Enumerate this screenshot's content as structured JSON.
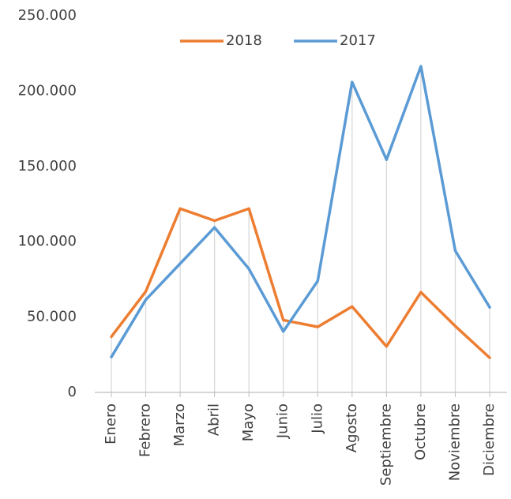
{
  "chart_data": {
    "type": "line",
    "categories": [
      "Enero",
      "Febrero",
      "Marzo",
      "Abril",
      "Mayo",
      "Junio",
      "Julio",
      "Agosto",
      "Septiembre",
      "Octubre",
      "Noviembre",
      "Diciembre"
    ],
    "series": [
      {
        "name": "2018",
        "color": "#ED7D31",
        "values": [
          37000,
          67000,
          122000,
          114000,
          122000,
          48000,
          43500,
          57000,
          30500,
          66500,
          44000,
          23000
        ]
      },
      {
        "name": "2017",
        "color": "#5B9BD5",
        "values": [
          23500,
          61500,
          85500,
          109500,
          82000,
          40500,
          74000,
          206000,
          154500,
          216500,
          94000,
          56500
        ]
      }
    ],
    "ylim": [
      0,
      250000
    ],
    "yticks": [
      0,
      {
        "value": 50000,
        "label": "50.000"
      },
      {
        "value": 100000,
        "label": "100.000"
      },
      {
        "value": 150000,
        "label": "150.000"
      },
      {
        "value": 200000,
        "label": "200.000"
      },
      {
        "value": 250000,
        "label": "250.000"
      }
    ],
    "legend": "top"
  }
}
